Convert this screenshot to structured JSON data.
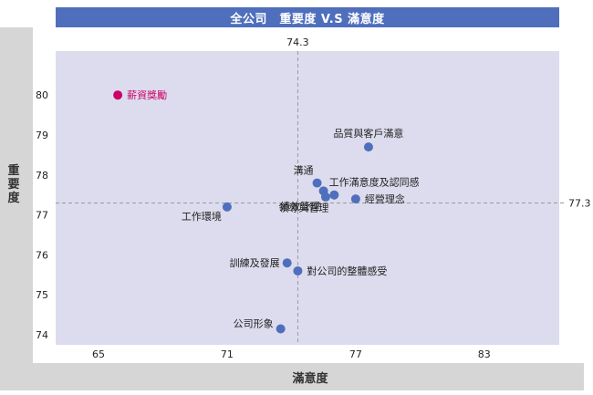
{
  "chart_data": {
    "type": "scatter",
    "title": "全公司　重要度 V.S 滿意度",
    "xlabel": "滿意度",
    "ylabel": "重要度",
    "xlim": [
      63,
      86.5
    ],
    "ylim": [
      73.75,
      81.1
    ],
    "x_ticks": [
      65,
      71,
      77,
      83
    ],
    "y_ticks": [
      74,
      75,
      76,
      77,
      78,
      79,
      80
    ],
    "ref_x": 74.3,
    "ref_y": 77.3,
    "ref_x_label": "74.3",
    "ref_y_label": "77.3",
    "grid": false,
    "point_color": "#4f6fbd",
    "highlight_color": "#cc0066",
    "points": [
      {
        "label": "薪資獎勵",
        "x": 65.9,
        "y": 80.0,
        "highlight": true,
        "label_pos": "right"
      },
      {
        "label": "品質與客戶滿意",
        "x": 77.6,
        "y": 78.7,
        "label_pos": "above"
      },
      {
        "label": "溝通",
        "x": 75.2,
        "y": 77.8,
        "label_pos": "above-left"
      },
      {
        "label": "工作滿意度及認同感",
        "x": 75.5,
        "y": 77.6,
        "label_pos": "right-up"
      },
      {
        "label": "績效管理",
        "x": 75.6,
        "y": 77.45,
        "label_pos": "below-left"
      },
      {
        "label": "領導與管理",
        "x": 76.0,
        "y": 77.5,
        "label_pos": "below-left2"
      },
      {
        "label": "經營理念",
        "x": 77.0,
        "y": 77.4,
        "label_pos": "right"
      },
      {
        "label": "工作環境",
        "x": 71.0,
        "y": 77.2,
        "label_pos": "below-left"
      },
      {
        "label": "訓練及發展",
        "x": 73.8,
        "y": 75.8,
        "label_pos": "left"
      },
      {
        "label": "對公司的整體感受",
        "x": 74.3,
        "y": 75.6,
        "label_pos": "right"
      },
      {
        "label": "公司形象",
        "x": 73.5,
        "y": 74.15,
        "label_pos": "left-up"
      }
    ]
  }
}
